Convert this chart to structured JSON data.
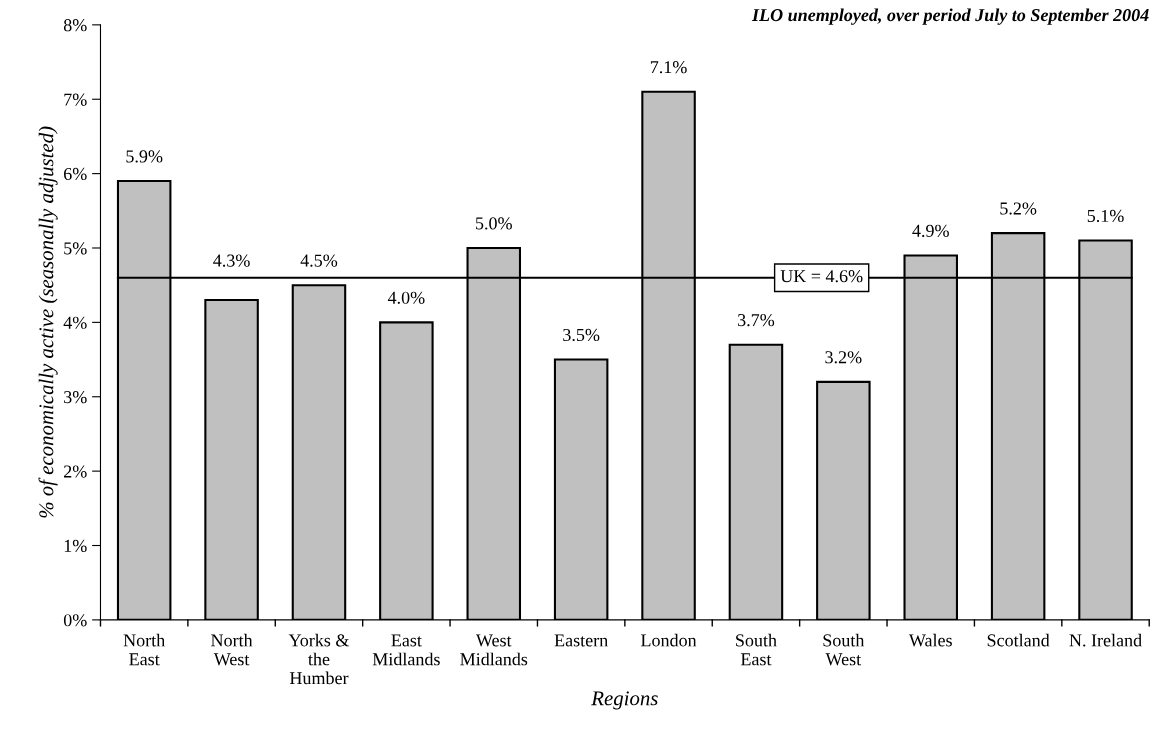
{
  "chart_data": {
    "type": "bar",
    "title": "ILO unemployed, over period July to September 2004",
    "xlabel": "Regions",
    "ylabel": "% of economically active (seasonally adjusted)",
    "categories": [
      "North\nEast",
      "North\nWest",
      "Yorks &\nthe\nHumber",
      "East\nMidlands",
      "West\nMidlands",
      "Eastern",
      "London",
      "South\nEast",
      "South\nWest",
      "Wales",
      "Scotland",
      "N. Ireland"
    ],
    "values": [
      5.9,
      4.3,
      4.5,
      4.0,
      5.0,
      3.5,
      7.1,
      3.7,
      3.2,
      4.9,
      5.2,
      5.1
    ],
    "value_labels": [
      "5.9%",
      "4.3%",
      "4.5%",
      "4.0%",
      "5.0%",
      "3.5%",
      "7.1%",
      "3.7%",
      "3.2%",
      "4.9%",
      "5.2%",
      "5.1%"
    ],
    "color": "#c0c0c0",
    "ylim": [
      0,
      8
    ],
    "yticks": [
      {
        "value": 0,
        "label": "0%"
      },
      {
        "value": 1,
        "label": "1%"
      },
      {
        "value": 2,
        "label": "2%"
      },
      {
        "value": 3,
        "label": "3%"
      },
      {
        "value": 4,
        "label": "4%"
      },
      {
        "value": 5,
        "label": "5%"
      },
      {
        "value": 6,
        "label": "6%"
      },
      {
        "value": 7,
        "label": "7%"
      },
      {
        "value": 8,
        "label": "8%"
      }
    ],
    "ref_lines": [
      {
        "axis": "y",
        "value": 4.6,
        "label": "UK = 4.6%",
        "color": "#000000"
      }
    ],
    "grid": false
  }
}
